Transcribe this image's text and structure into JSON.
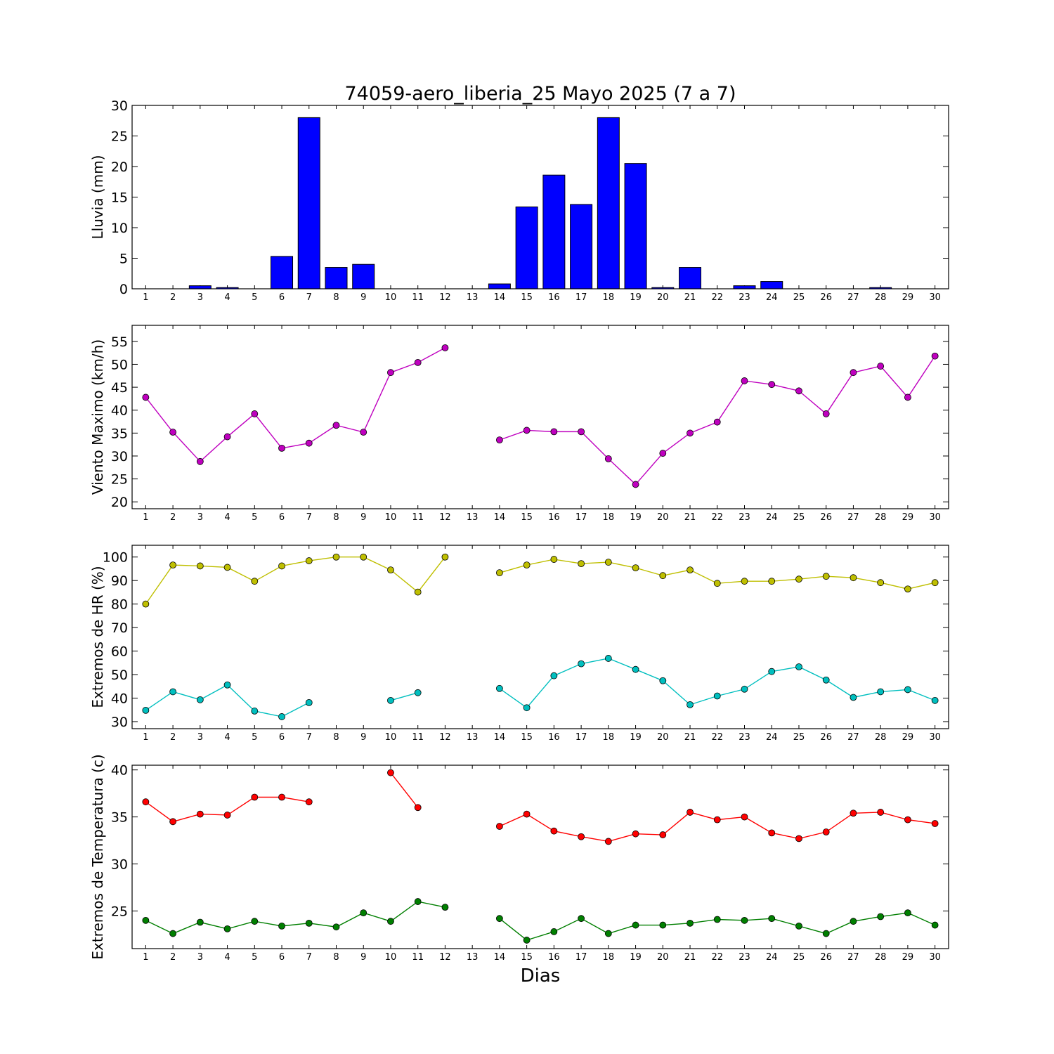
{
  "figure": {
    "title": "74059-aero_liberia_25 Mayo 2025  (7 a 7)",
    "xlabel": "Dias"
  },
  "chart_data": [
    {
      "type": "bar",
      "ylabel": "Lluvia (mm)",
      "ylim": [
        0,
        30
      ],
      "yticks": [
        0,
        5,
        10,
        15,
        20,
        25,
        30
      ],
      "categories": [
        1,
        2,
        3,
        4,
        5,
        6,
        7,
        8,
        9,
        10,
        11,
        12,
        13,
        14,
        15,
        16,
        17,
        18,
        19,
        20,
        21,
        22,
        23,
        24,
        25,
        26,
        27,
        28,
        29,
        30
      ],
      "values": [
        0,
        0,
        0.5,
        0.2,
        0,
        5.3,
        28,
        3.5,
        4.0,
        0,
        0,
        0,
        0,
        0.8,
        13.4,
        18.6,
        13.8,
        28,
        20.5,
        0.2,
        3.5,
        0,
        0.5,
        1.2,
        0,
        0,
        0,
        0.2,
        0,
        0
      ],
      "color": "#0000ff"
    },
    {
      "type": "line",
      "ylabel": "Viento Maximo (km/h)",
      "ylim": [
        18.5,
        58.5
      ],
      "yticks": [
        20,
        25,
        30,
        35,
        40,
        45,
        50,
        55
      ],
      "x": [
        1,
        2,
        3,
        4,
        5,
        6,
        7,
        8,
        9,
        10,
        11,
        12,
        13,
        14,
        15,
        16,
        17,
        18,
        19,
        20,
        21,
        22,
        23,
        24,
        25,
        26,
        27,
        28,
        29,
        30
      ],
      "series": [
        {
          "color": "#bf00bf",
          "values": [
            42.8,
            35.2,
            28.8,
            34.2,
            39.2,
            31.7,
            32.8,
            36.7,
            35.2,
            48.2,
            50.4,
            53.6,
            null,
            33.5,
            35.6,
            35.3,
            35.3,
            29.4,
            23.8,
            30.6,
            35.0,
            37.4,
            46.4,
            45.6,
            44.2,
            39.2,
            48.2,
            49.6,
            42.8,
            51.8
          ]
        }
      ]
    },
    {
      "type": "line",
      "ylabel": "Extremos de HR (%)",
      "ylim": [
        27,
        105
      ],
      "yticks": [
        30,
        40,
        50,
        60,
        70,
        80,
        90,
        100
      ],
      "x": [
        1,
        2,
        3,
        4,
        5,
        6,
        7,
        8,
        9,
        10,
        11,
        12,
        13,
        14,
        15,
        16,
        17,
        18,
        19,
        20,
        21,
        22,
        23,
        24,
        25,
        26,
        27,
        28,
        29,
        30
      ],
      "series": [
        {
          "color": "#bfbf00",
          "values": [
            80,
            96.6,
            96.2,
            95.6,
            89.7,
            96.2,
            98.4,
            100,
            100,
            94.5,
            85.1,
            100,
            null,
            93.3,
            96.6,
            99,
            97.2,
            97.8,
            95.4,
            92.1,
            94.5,
            88.8,
            89.7,
            89.7,
            90.6,
            91.8,
            91.2,
            89.1,
            86.4,
            89.1
          ]
        },
        {
          "color": "#00bfbf",
          "values": [
            34.8,
            42.7,
            39.3,
            45.6,
            34.5,
            32.1,
            38.1,
            null,
            null,
            39.0,
            42.3,
            null,
            null,
            44.1,
            35.9,
            49.5,
            54.6,
            56.9,
            52.2,
            47.4,
            37.2,
            40.9,
            43.8,
            51.3,
            53.3,
            47.7,
            40.3,
            42.7,
            43.6,
            39.0
          ]
        }
      ]
    },
    {
      "type": "line",
      "ylabel": "Extremos de Temperatura (c)",
      "ylim": [
        21,
        40.5
      ],
      "yticks": [
        25,
        30,
        35,
        40
      ],
      "x": [
        1,
        2,
        3,
        4,
        5,
        6,
        7,
        8,
        9,
        10,
        11,
        12,
        13,
        14,
        15,
        16,
        17,
        18,
        19,
        20,
        21,
        22,
        23,
        24,
        25,
        26,
        27,
        28,
        29,
        30
      ],
      "series": [
        {
          "color": "#ff0000",
          "values": [
            36.6,
            34.5,
            35.3,
            35.2,
            37.1,
            37.1,
            36.6,
            null,
            null,
            39.7,
            36.0,
            null,
            null,
            34.0,
            35.3,
            33.5,
            32.9,
            32.4,
            33.2,
            33.1,
            35.5,
            34.7,
            35.0,
            33.3,
            32.7,
            33.4,
            35.4,
            35.5,
            34.7,
            34.3
          ]
        },
        {
          "color": "#007f00",
          "values": [
            24.0,
            22.6,
            23.8,
            23.1,
            23.9,
            23.4,
            23.7,
            23.3,
            24.8,
            23.9,
            26.0,
            25.4,
            null,
            24.2,
            21.9,
            22.8,
            24.2,
            22.6,
            23.5,
            23.5,
            23.7,
            24.1,
            24.0,
            24.2,
            23.4,
            22.6,
            23.9,
            24.4,
            24.8,
            23.5
          ]
        }
      ]
    }
  ]
}
